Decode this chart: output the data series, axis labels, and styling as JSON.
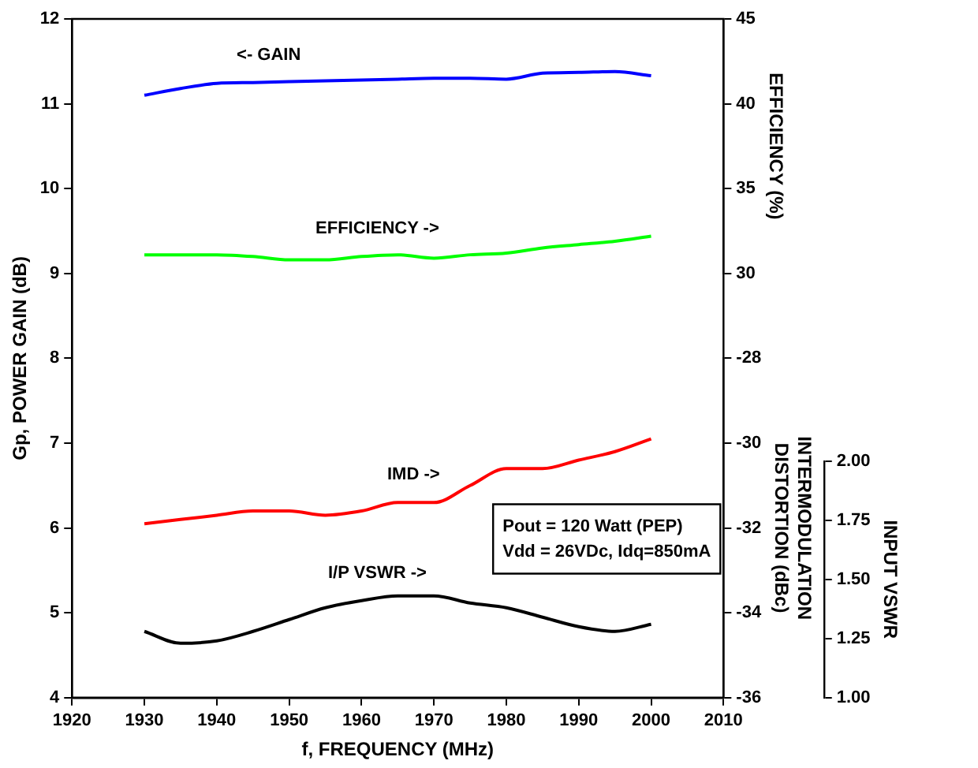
{
  "chart_data": [
    {
      "type": "line",
      "xlabel": "f, FREQUENCY (MHz)",
      "ylabel": "Gp, POWER GAIN (dB)",
      "y2label": "EFFICIENCY (%)",
      "y3label": "INTERMODULATION\nDISTORTION (dBc)",
      "x": [
        1930,
        1935,
        1940,
        1945,
        1950,
        1955,
        1960,
        1965,
        1970,
        1975,
        1980,
        1985,
        1990,
        1995,
        2000
      ],
      "xlim": [
        1920,
        2010
      ],
      "xticks": [
        1920,
        1930,
        1940,
        1950,
        1960,
        1970,
        1980,
        1990,
        2000,
        2010
      ],
      "ylim": [
        4,
        12
      ],
      "yticks": [
        4,
        5,
        6,
        7,
        8,
        9,
        10,
        11,
        12
      ],
      "y2lim": [
        30,
        45
      ],
      "y2ticks": [
        30,
        35,
        40,
        45
      ],
      "y3lim": [
        -36,
        -28
      ],
      "y3ticks": [
        -36,
        -34,
        -32,
        -30,
        -28
      ],
      "series": [
        {
          "name": "<- GAIN",
          "color": "#0000ff",
          "values": [
            11.1,
            11.18,
            11.24,
            11.25,
            11.26,
            11.27,
            11.28,
            11.29,
            11.3,
            11.3,
            11.29,
            11.36,
            11.37,
            11.38,
            11.33
          ]
        },
        {
          "name": "EFFICIENCY ->",
          "color": "#00ff00",
          "axis": "y2",
          "values": [
            31.1,
            31.1,
            31.1,
            31.0,
            30.8,
            30.8,
            31.0,
            31.1,
            30.9,
            31.1,
            31.2,
            31.5,
            31.7,
            31.9,
            32.2
          ]
        },
        {
          "name": "IMD ->",
          "color": "#ff0000",
          "axis": "y3",
          "values": [
            -31.9,
            -31.8,
            -31.7,
            -31.6,
            -31.6,
            -31.7,
            -31.6,
            -31.4,
            -31.4,
            -31.0,
            -30.6,
            -30.6,
            -30.4,
            -30.2,
            -29.9
          ]
        }
      ],
      "annotations": [
        "Pout = 120 Watt (PEP)",
        "Vdd = 26VDc, Idq=850mA"
      ],
      "legend": false,
      "grid": false,
      "marker": "none",
      "line_style": "solid"
    },
    {
      "type": "line",
      "ylabel": "INPUT VSWR",
      "tick_labels": "y",
      "x": [
        1930,
        1935,
        1940,
        1945,
        1950,
        1955,
        1960,
        1965,
        1970,
        1975,
        1980,
        1985,
        1990,
        1995,
        2000
      ],
      "xlim": [
        1920,
        2010
      ],
      "ylim": [
        1,
        2
      ],
      "yticks": [
        {
          "value": 1,
          "label": "1.00"
        },
        {
          "value": 1.25,
          "label": "1.25"
        },
        {
          "value": 1.5,
          "label": "1.50"
        },
        {
          "value": 1.75,
          "label": "1.75"
        },
        {
          "value": 2,
          "label": "2.00"
        }
      ],
      "series": [
        {
          "name": "I/P VSWR ->",
          "color": "#000000",
          "values": [
            1.28,
            1.23,
            1.24,
            1.28,
            1.33,
            1.38,
            1.41,
            1.43,
            1.43,
            1.4,
            1.38,
            1.34,
            1.3,
            1.28,
            1.31
          ]
        }
      ],
      "legend": false,
      "grid": false,
      "marker": "none",
      "line_style": "solid"
    }
  ]
}
